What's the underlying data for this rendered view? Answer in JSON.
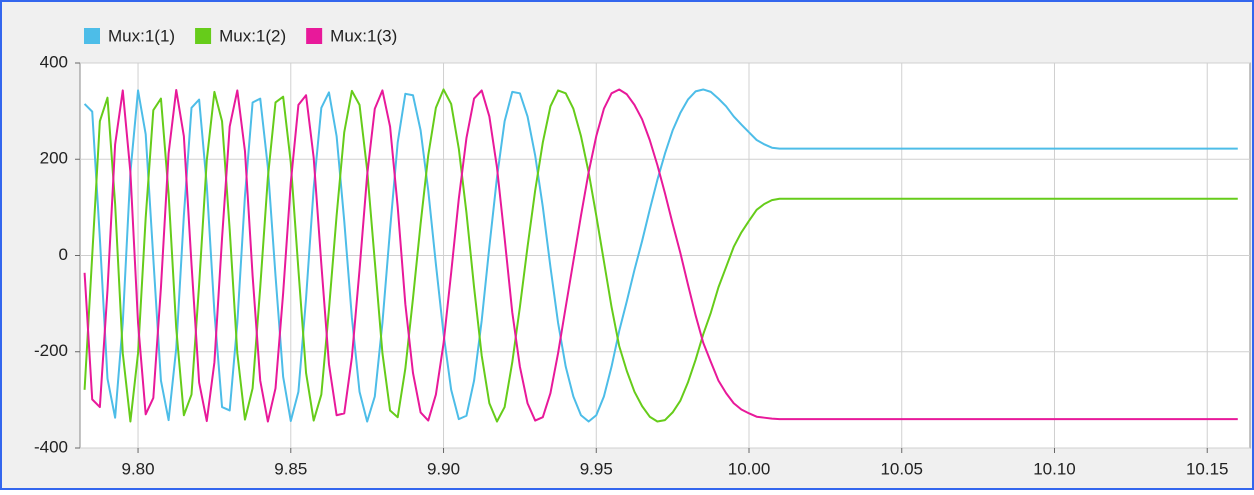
{
  "chart_data": {
    "type": "line",
    "x": [
      9.7825,
      9.785,
      9.7875,
      9.79,
      9.7925,
      9.795,
      9.7975,
      9.8,
      9.8025,
      9.805,
      9.8075,
      9.81,
      9.8125,
      9.815,
      9.8175,
      9.82,
      9.8225,
      9.825,
      9.8275,
      9.83,
      9.8325,
      9.835,
      9.8375,
      9.84,
      9.8425,
      9.845,
      9.8475,
      9.85,
      9.8525,
      9.855,
      9.8575,
      9.86,
      9.8625,
      9.865,
      9.8675,
      9.87,
      9.8725,
      9.875,
      9.8775,
      9.88,
      9.8825,
      9.885,
      9.8875,
      9.89,
      9.8925,
      9.895,
      9.8975,
      9.9,
      9.9025,
      9.905,
      9.9075,
      9.91,
      9.9125,
      9.915,
      9.9175,
      9.92,
      9.9225,
      9.925,
      9.9275,
      9.93,
      9.9325,
      9.935,
      9.9375,
      9.94,
      9.9425,
      9.945,
      9.9475,
      9.95,
      9.9525,
      9.955,
      9.9575,
      9.96,
      9.9625,
      9.965,
      9.9675,
      9.97,
      9.9725,
      9.975,
      9.9775,
      9.98,
      9.9825,
      9.985,
      9.9875,
      9.99,
      9.9925,
      9.995,
      9.9975,
      10.0,
      10.0025,
      10.005,
      10.0075,
      10.01,
      10.05,
      10.1,
      10.16
    ],
    "series": [
      {
        "name": "Mux:1(1)",
        "color": "#4dbde8",
        "values": [
          315,
          299,
          36,
          -256,
          -337,
          -140,
          173,
          343,
          252,
          -6,
          -260,
          -342,
          -193,
          83,
          307,
          324,
          146,
          -118,
          -315,
          -322,
          -140,
          124,
          318,
          326,
          183,
          -42,
          -252,
          -344,
          -283,
          -89,
          140,
          307,
          339,
          248,
          72,
          -129,
          -283,
          -345,
          -293,
          -140,
          54,
          235,
          336,
          333,
          260,
          135,
          -18,
          -162,
          -279,
          -340,
          -333,
          -260,
          -135,
          18,
          162,
          279,
          340,
          337,
          289,
          208,
          101,
          -24,
          -140,
          -231,
          -293,
          -332,
          -345,
          -332,
          -293,
          -231,
          -157,
          -95,
          -30,
          30,
          95,
          157,
          212,
          260,
          296,
          324,
          341,
          345,
          340,
          326,
          310,
          289,
          272,
          256,
          240,
          231,
          224,
          222,
          222,
          222,
          222
        ]
      },
      {
        "name": "Mux:1(2)",
        "color": "#66cc1a",
        "values": [
          -279,
          0,
          279,
          328,
          107,
          -203,
          -345,
          -203,
          78,
          302,
          326,
          129,
          -151,
          -332,
          -289,
          -60,
          198,
          340,
          279,
          54,
          -203,
          -341,
          -276,
          -66,
          162,
          318,
          330,
          193,
          -30,
          -244,
          -343,
          -289,
          -112,
          83,
          256,
          342,
          313,
          178,
          -12,
          -203,
          -322,
          -336,
          -235,
          -89,
          66,
          208,
          307,
          345,
          315,
          222,
          89,
          -66,
          -208,
          -307,
          -345,
          -315,
          -222,
          -107,
          18,
          135,
          235,
          310,
          343,
          337,
          305,
          248,
          173,
          83,
          -12,
          -107,
          -188,
          -240,
          -283,
          -313,
          -335,
          -345,
          -342,
          -326,
          -302,
          -264,
          -217,
          -164,
          -119,
          -66,
          -24,
          18,
          48,
          72,
          95,
          107,
          115,
          118,
          118,
          118,
          118
        ]
      },
      {
        "name": "Mux:1(3)",
        "color": "#e8199a",
        "values": [
          -36,
          -299,
          -315,
          -72,
          231,
          343,
          173,
          -140,
          -330,
          -296,
          -66,
          212,
          344,
          248,
          -18,
          -264,
          -344,
          -222,
          36,
          268,
          343,
          217,
          -42,
          -260,
          -345,
          -276,
          -78,
          151,
          313,
          333,
          203,
          -18,
          -226,
          -332,
          -328,
          -212,
          -30,
          167,
          305,
          343,
          268,
          101,
          -101,
          -244,
          -326,
          -343,
          -289,
          -183,
          -36,
          118,
          244,
          326,
          343,
          289,
          183,
          36,
          -118,
          -231,
          -307,
          -343,
          -336,
          -286,
          -203,
          -107,
          -12,
          83,
          173,
          248,
          305,
          337,
          345,
          335,
          313,
          283,
          240,
          188,
          129,
          66,
          6,
          -60,
          -124,
          -181,
          -221,
          -260,
          -286,
          -307,
          -320,
          -328,
          -335,
          -337,
          -339,
          -340,
          -340,
          -340,
          -340
        ]
      }
    ],
    "xlim": [
      9.781,
      10.164
    ],
    "xticks": [
      {
        "value": 9.8,
        "label": "9.80"
      },
      {
        "value": 9.85,
        "label": "9.85"
      },
      {
        "value": 9.9,
        "label": "9.90"
      },
      {
        "value": 9.95,
        "label": "9.95"
      },
      {
        "value": 10.0,
        "label": "10.00"
      },
      {
        "value": 10.05,
        "label": "10.05"
      },
      {
        "value": 10.1,
        "label": "10.10"
      },
      {
        "value": 10.15,
        "label": "10.15"
      }
    ],
    "ylim": [
      -400,
      400
    ],
    "yticks": [
      400,
      200,
      0,
      -200,
      -400
    ],
    "grid": true
  }
}
